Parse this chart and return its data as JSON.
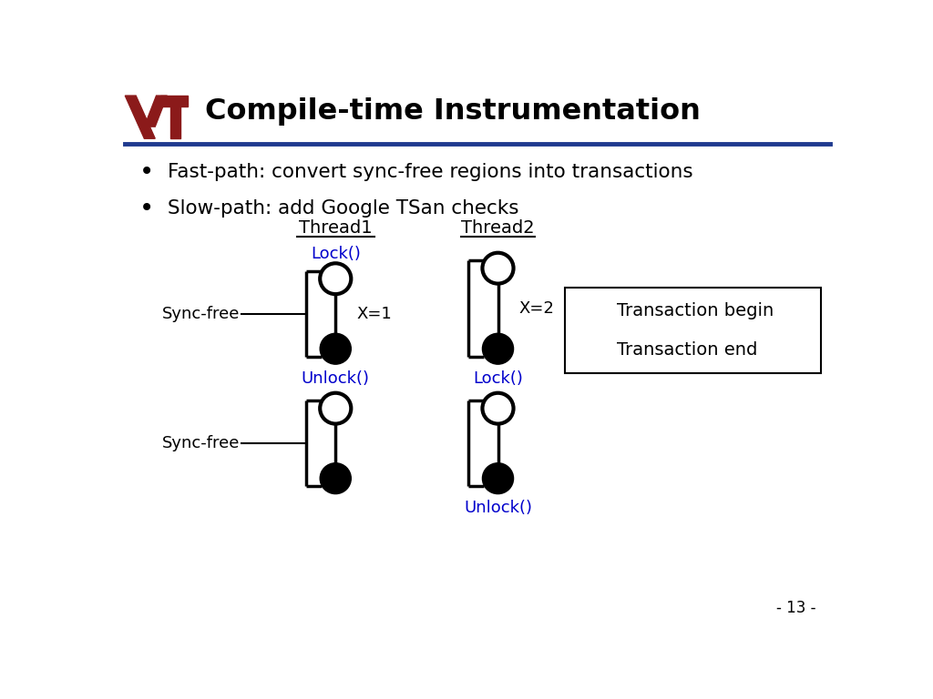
{
  "title": "Compile-time Instrumentation",
  "bullet1": "Fast-path: convert sync-free regions into transactions",
  "bullet2": "Slow-path: add Google TSan checks",
  "thread1_label": "Thread1",
  "thread2_label": "Thread2",
  "lock_color": "#0000CC",
  "line_color": "#000000",
  "bg_color": "#FFFFFF",
  "title_color": "#000000",
  "vt_maroon": "#8B1A1A",
  "blue_line_color": "#1F3A8F",
  "legend_begin": "Transaction begin",
  "legend_end": "Transaction end",
  "page_number": "- 13 -",
  "t1x": 3.1,
  "t2x": 5.4,
  "circle_r": 0.22,
  "lw_circle": 3.0,
  "lw_line": 2.5,
  "lw_bracket": 2.5
}
